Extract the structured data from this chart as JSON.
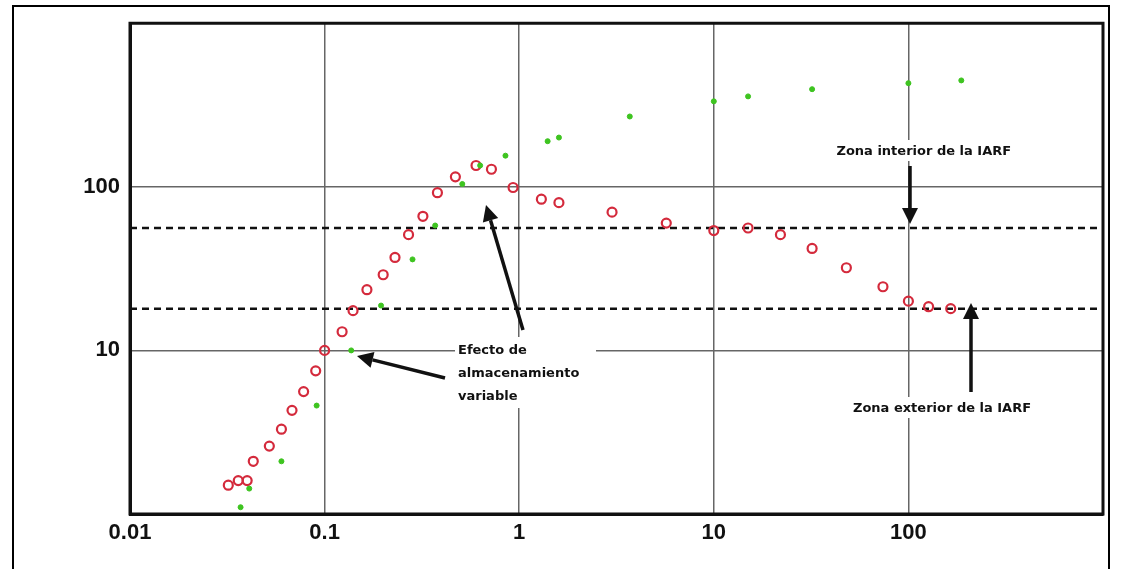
{
  "chart_data": {
    "type": "scatter",
    "log": "xy",
    "grid": true,
    "legend": false,
    "marker": "circle",
    "xlim": [
      0.01,
      1000
    ],
    "xticks": [
      0.01,
      0.1,
      1,
      10,
      100
    ],
    "ylim": [
      1,
      1000
    ],
    "yticks": [
      10,
      100
    ],
    "series": [
      {
        "color": "#d42a3c",
        "x": [
          0.032,
          0.036,
          0.04,
          0.043,
          0.052,
          0.06,
          0.068,
          0.078,
          0.09,
          0.1,
          0.123,
          0.14,
          0.165,
          0.2,
          0.23,
          0.27,
          0.32,
          0.38,
          0.47,
          0.6,
          0.72,
          0.93,
          1.3,
          1.6,
          3.0,
          5.7,
          10,
          15,
          22,
          32,
          48,
          74,
          100,
          127,
          165
        ],
        "values": [
          1.5,
          1.6,
          1.6,
          2.1,
          2.6,
          3.3,
          4.3,
          5.6,
          7.5,
          10,
          13,
          17.5,
          23.5,
          29,
          37,
          51,
          66,
          92,
          115,
          135,
          128,
          99,
          84,
          80,
          70,
          60,
          54,
          56,
          51,
          42,
          32,
          24.5,
          20,
          18.5,
          18
        ]
      },
      {
        "color": "#3ec420",
        "x": [
          0.037,
          0.041,
          0.06,
          0.091,
          0.137,
          0.195,
          0.283,
          0.37,
          0.51,
          0.63,
          0.85,
          1.4,
          1.6,
          3.7,
          10,
          15,
          32,
          100,
          187
        ],
        "values": [
          1.1,
          1.43,
          2.1,
          4.6,
          10,
          18.8,
          36,
          58,
          104,
          135,
          155,
          190,
          200,
          269,
          333,
          357,
          395,
          430,
          447
        ]
      }
    ],
    "ref_lines": [
      {
        "axis": "y",
        "value": 56,
        "line_style": "dashed",
        "color": "#111111"
      },
      {
        "axis": "y",
        "value": 18,
        "line_style": "dashed",
        "color": "#111111"
      }
    ],
    "annotations": [
      "Efecto de almacenamiento variable",
      "Zona interior de la IARF",
      "Zona exterior de la IARF"
    ]
  }
}
